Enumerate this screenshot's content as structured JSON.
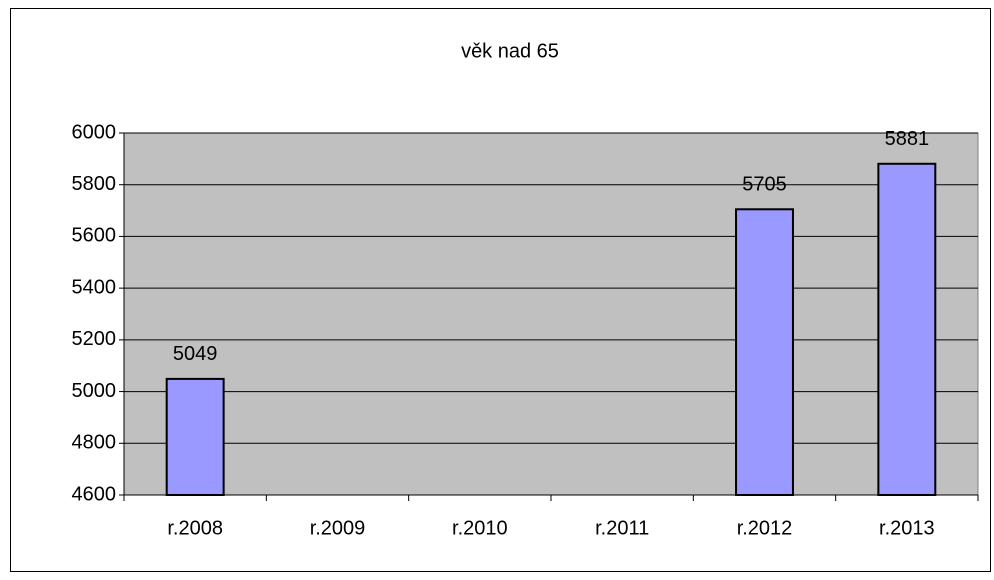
{
  "chart_data": {
    "type": "bar",
    "title": "věk nad 65",
    "categories": [
      "r.2008",
      "r.2009",
      "r.2010",
      "r.2011",
      "r.2012",
      "r.2013"
    ],
    "values": [
      5049,
      null,
      null,
      null,
      5705,
      5881
    ],
    "color": "#9999ff",
    "ylim": [
      4600,
      6000
    ],
    "yticks": [
      4600,
      4800,
      5000,
      5200,
      5400,
      5600,
      5800,
      6000
    ],
    "grid": true,
    "data_labels": true
  }
}
